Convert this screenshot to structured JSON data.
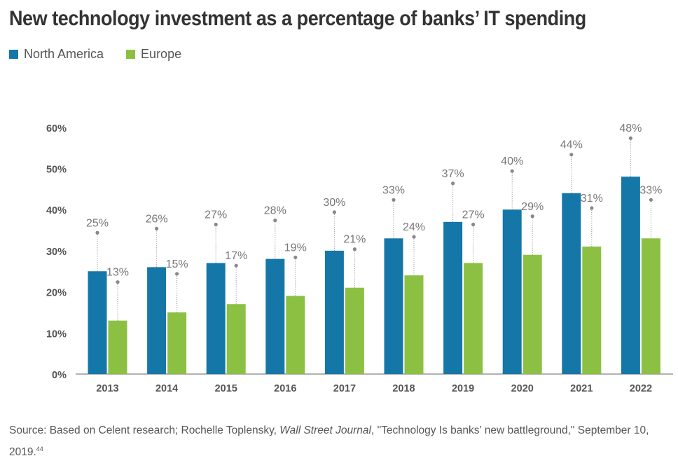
{
  "title": "New technology investment as a percentage of banks’ IT spending",
  "colors": {
    "north_america": "#1577a8",
    "europe": "#8cc043",
    "axis_text": "#555555",
    "label_text": "#777777",
    "leader": "#888888"
  },
  "chart_data": {
    "type": "bar",
    "title": "New technology investment as a percentage of banks’ IT spending",
    "xlabel": "",
    "ylabel": "",
    "categories": [
      "2013",
      "2014",
      "2015",
      "2016",
      "2017",
      "2018",
      "2019",
      "2020",
      "2021",
      "2022"
    ],
    "series": [
      {
        "name": "North America",
        "color": "#1577a8",
        "values": [
          25,
          26,
          27,
          28,
          30,
          33,
          37,
          40,
          44,
          48
        ]
      },
      {
        "name": "Europe",
        "color": "#8cc043",
        "values": [
          13,
          15,
          17,
          19,
          21,
          24,
          27,
          29,
          31,
          33
        ]
      }
    ],
    "yticks": [
      "0%",
      "10%",
      "20%",
      "30%",
      "40%",
      "50%",
      "60%"
    ],
    "ylim": [
      0,
      60
    ],
    "data_label_suffix": "%",
    "legend_position": "top-left",
    "grid": false
  },
  "source": {
    "prefix": "Source: Based on Celent research; Rochelle Toplensky, ",
    "publication": "Wall Street Journal",
    "suffix": ", \"Technology Is banks’ new battleground,\" September 10, 2019.",
    "footnote": "44"
  }
}
